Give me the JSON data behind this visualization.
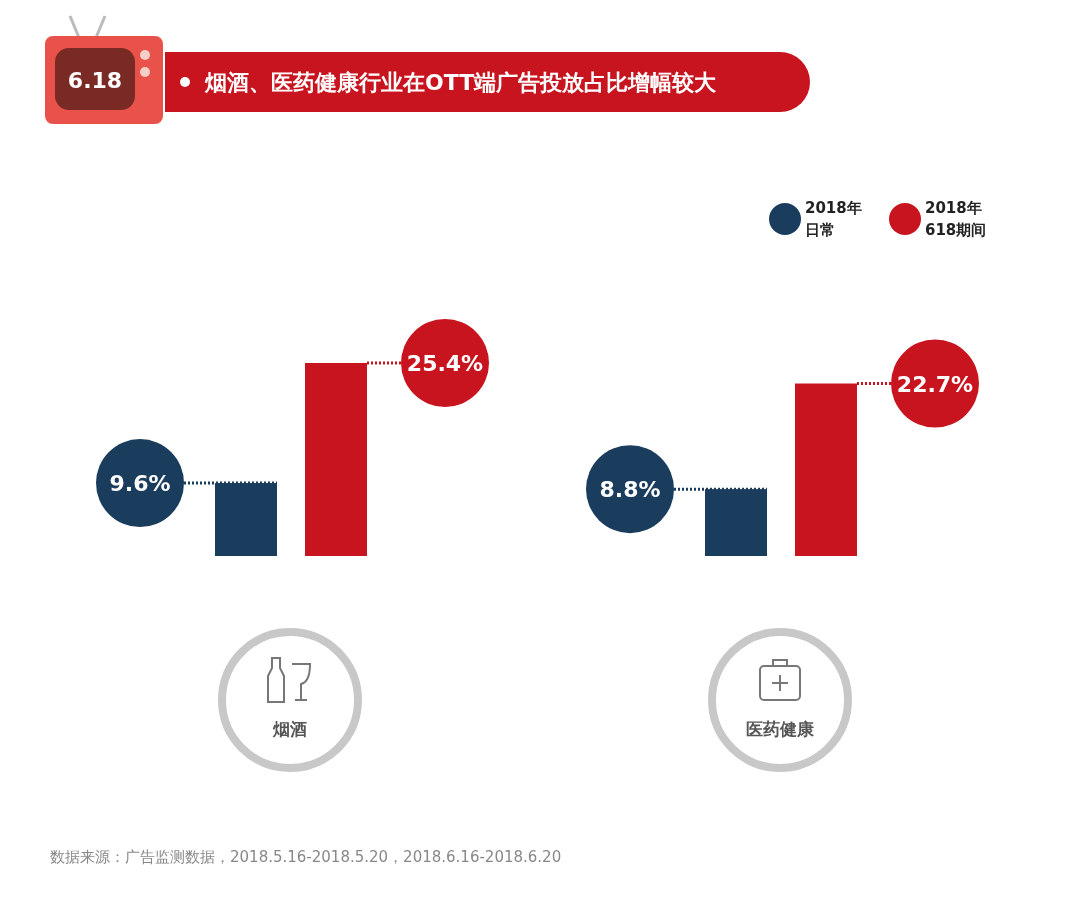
{
  "chart_data": {
    "type": "bar",
    "title": "烟酒、医药健康行业在OTT端广告投放占比增幅较大",
    "categories": [
      "烟酒",
      "医药健康"
    ],
    "series": [
      {
        "name": "2018年日常",
        "color": "#1b3d5d",
        "values": [
          9.6,
          8.8
        ],
        "value_labels": [
          "9.6%",
          "8.8%"
        ]
      },
      {
        "name": "2018年618期间",
        "color": "#c8141e",
        "values": [
          25.4,
          22.7
        ],
        "value_labels": [
          "25.4%",
          "22.7%"
        ]
      }
    ],
    "legend": "top right",
    "annotations": [
      "6.18",
      "数据来源：广告监测数据，2018.5.16-2018.5.20，2018.6.16-2018.6.20"
    ]
  }
}
